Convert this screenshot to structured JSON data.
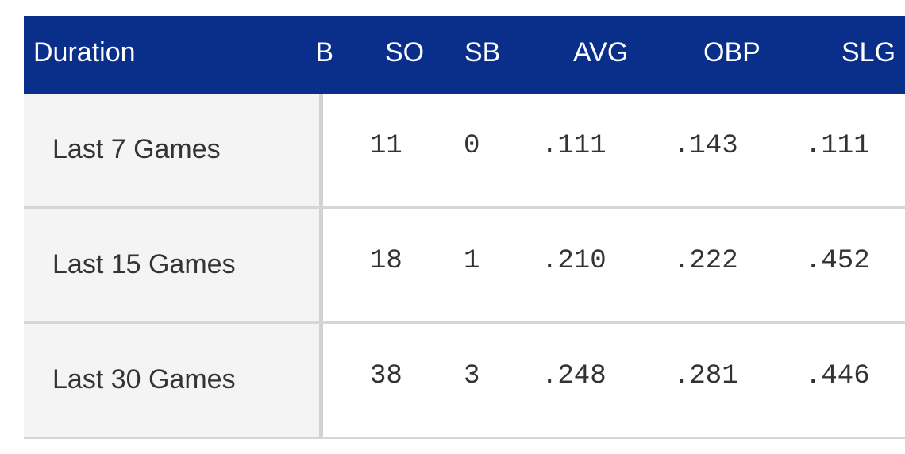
{
  "table": {
    "headers": {
      "duration": "Duration",
      "clipped": "B",
      "so": "SO",
      "sb": "SB",
      "avg": "AVG",
      "obp": "OBP",
      "slg": "SLG"
    },
    "rows": [
      {
        "duration": "Last 7 Games",
        "so": "11",
        "sb": "0",
        "avg": ".111",
        "obp": ".143",
        "slg": ".111"
      },
      {
        "duration": "Last 15 Games",
        "so": "18",
        "sb": "1",
        "avg": ".210",
        "obp": ".222",
        "slg": ".452"
      },
      {
        "duration": "Last 30 Games",
        "so": "38",
        "sb": "3",
        "avg": ".248",
        "obp": ".281",
        "slg": ".446"
      }
    ]
  },
  "colors": {
    "header_bg": "#0a2f8a",
    "header_text": "#ffffff",
    "first_col_bg": "#f4f4f4",
    "border": "#d6d6d6",
    "text": "#333333"
  }
}
